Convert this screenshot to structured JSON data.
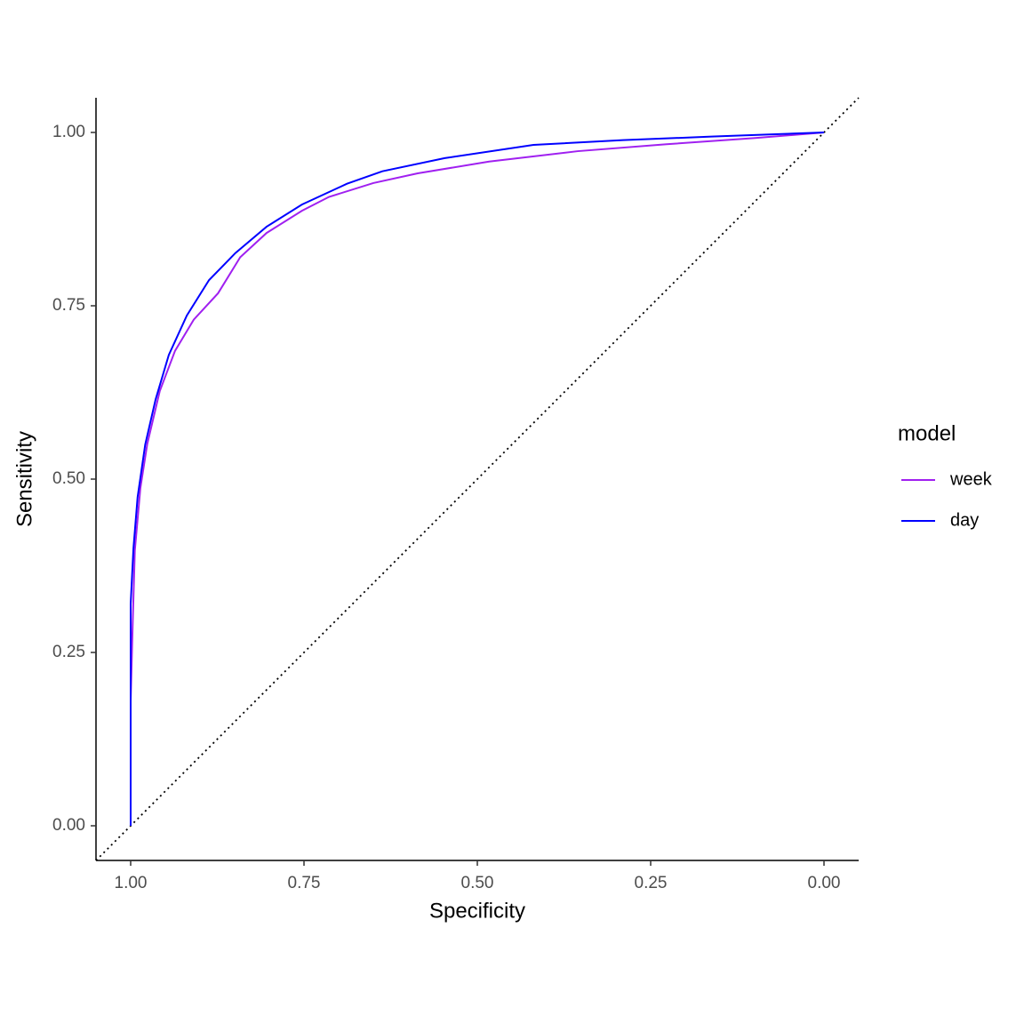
{
  "chart_data": {
    "type": "line",
    "x_label": "Specificity",
    "y_label": "Sensitivity",
    "legend_title": "model",
    "xlim": [
      1.05,
      -0.05
    ],
    "ylim": [
      -0.05,
      1.05
    ],
    "xticks": [
      {
        "value": 1,
        "label": "1.00"
      },
      {
        "value": 0.75,
        "label": "0.75"
      },
      {
        "value": 0.5,
        "label": "0.50"
      },
      {
        "value": 0.25,
        "label": "0.25"
      },
      {
        "value": 0,
        "label": "0.00"
      }
    ],
    "yticks": [
      {
        "value": 0,
        "label": "0.00"
      },
      {
        "value": 0.25,
        "label": "0.25"
      },
      {
        "value": 0.5,
        "label": "0.50"
      },
      {
        "value": 0.75,
        "label": "0.75"
      },
      {
        "value": 1,
        "label": "1.00"
      }
    ],
    "grid": false,
    "legend": "right",
    "series": [
      {
        "name": "week",
        "color": "#a020f0",
        "x": [
          1,
          1,
          0.997,
          0.994,
          0.986,
          0.976,
          0.958,
          0.936,
          0.909,
          0.874,
          0.842,
          0.804,
          0.753,
          0.714,
          0.65,
          0.586,
          0.483,
          0.355,
          0.227,
          0.099,
          0
        ],
        "values": [
          0,
          0.18,
          0.294,
          0.397,
          0.487,
          0.551,
          0.627,
          0.685,
          0.73,
          0.768,
          0.82,
          0.855,
          0.887,
          0.907,
          0.927,
          0.941,
          0.958,
          0.973,
          0.983,
          0.992,
          1
        ]
      },
      {
        "name": "day",
        "color": "#0000ff",
        "x": [
          1,
          1,
          0.996,
          0.99,
          0.979,
          0.964,
          0.945,
          0.919,
          0.887,
          0.849,
          0.804,
          0.753,
          0.688,
          0.637,
          0.547,
          0.419,
          0.29,
          0.162,
          0
        ],
        "values": [
          0,
          0.32,
          0.4,
          0.474,
          0.55,
          0.615,
          0.679,
          0.736,
          0.787,
          0.826,
          0.864,
          0.896,
          0.926,
          0.944,
          0.963,
          0.982,
          0.989,
          0.994,
          1
        ]
      }
    ]
  }
}
